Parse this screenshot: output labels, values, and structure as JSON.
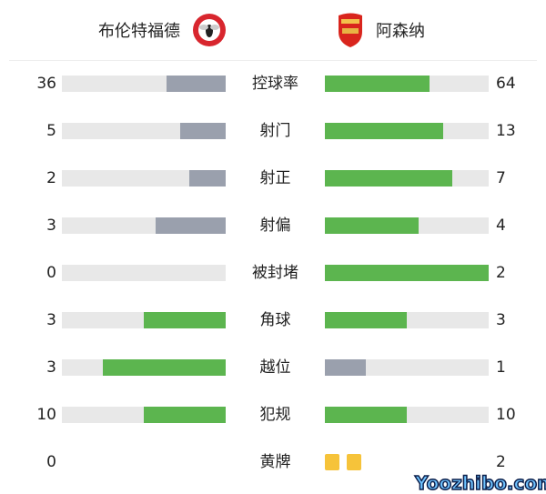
{
  "home": {
    "name": "布伦特福德",
    "logo": "brentford-crest"
  },
  "away": {
    "name": "阿森纳",
    "logo": "arsenal-crest"
  },
  "colors": {
    "leader": "#5cb54f",
    "trailer": "#9aa0ad",
    "track": "#e8e8e8",
    "card": "#f6c33a"
  },
  "stats": [
    {
      "label": "控球率",
      "home": "36",
      "away": "64"
    },
    {
      "label": "射门",
      "home": "5",
      "away": "13"
    },
    {
      "label": "射正",
      "home": "2",
      "away": "7"
    },
    {
      "label": "射偏",
      "home": "3",
      "away": "4"
    },
    {
      "label": "被封堵",
      "home": "0",
      "away": "2"
    },
    {
      "label": "角球",
      "home": "3",
      "away": "3"
    },
    {
      "label": "越位",
      "home": "3",
      "away": "1"
    },
    {
      "label": "犯规",
      "home": "10",
      "away": "10"
    },
    {
      "label": "黄牌",
      "home": "0",
      "away": "2",
      "cards": true
    }
  ],
  "watermark": "Yoozhibo.com"
}
